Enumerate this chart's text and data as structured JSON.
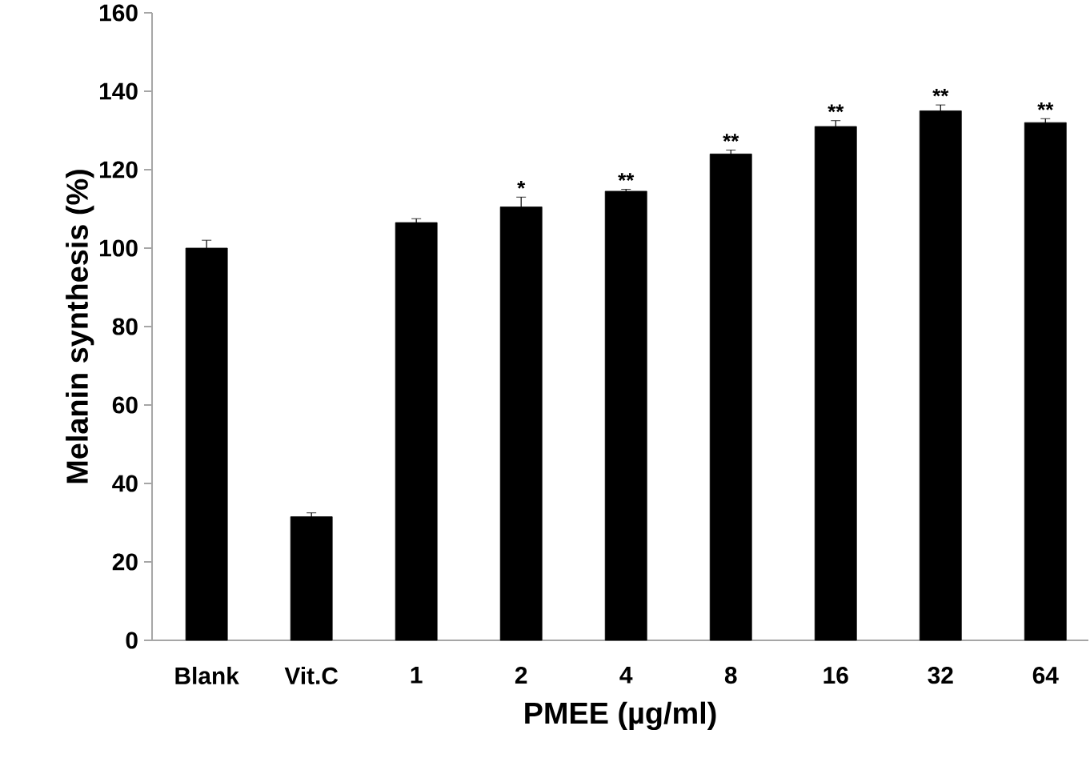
{
  "chart_data": {
    "type": "bar",
    "xlabel": "PMEE (µg/ml)",
    "ylabel": "Melanin synthesis (%)",
    "categories": [
      "Blank",
      "Vit.C",
      "1",
      "2",
      "4",
      "8",
      "16",
      "32",
      "64"
    ],
    "values": [
      100,
      31.5,
      106.5,
      110.5,
      114.5,
      124,
      131,
      135,
      132
    ],
    "errors": [
      2,
      1,
      1,
      2.5,
      0.5,
      1,
      1.5,
      1.5,
      1
    ],
    "color": "#000000",
    "ylim": [
      0,
      160
    ],
    "yticks": [
      0,
      20,
      40,
      60,
      80,
      100,
      120,
      140,
      160
    ],
    "annotations": [
      {
        "text": "*",
        "x": "2",
        "y": 113
      },
      {
        "text": "**",
        "x": "4",
        "y": 115
      },
      {
        "text": "**",
        "x": "8",
        "y": 125
      },
      {
        "text": "**",
        "x": "16",
        "y": 132.5
      },
      {
        "text": "**",
        "x": "32",
        "y": 136.5
      },
      {
        "text": "**",
        "x": "64",
        "y": 133
      }
    ]
  }
}
